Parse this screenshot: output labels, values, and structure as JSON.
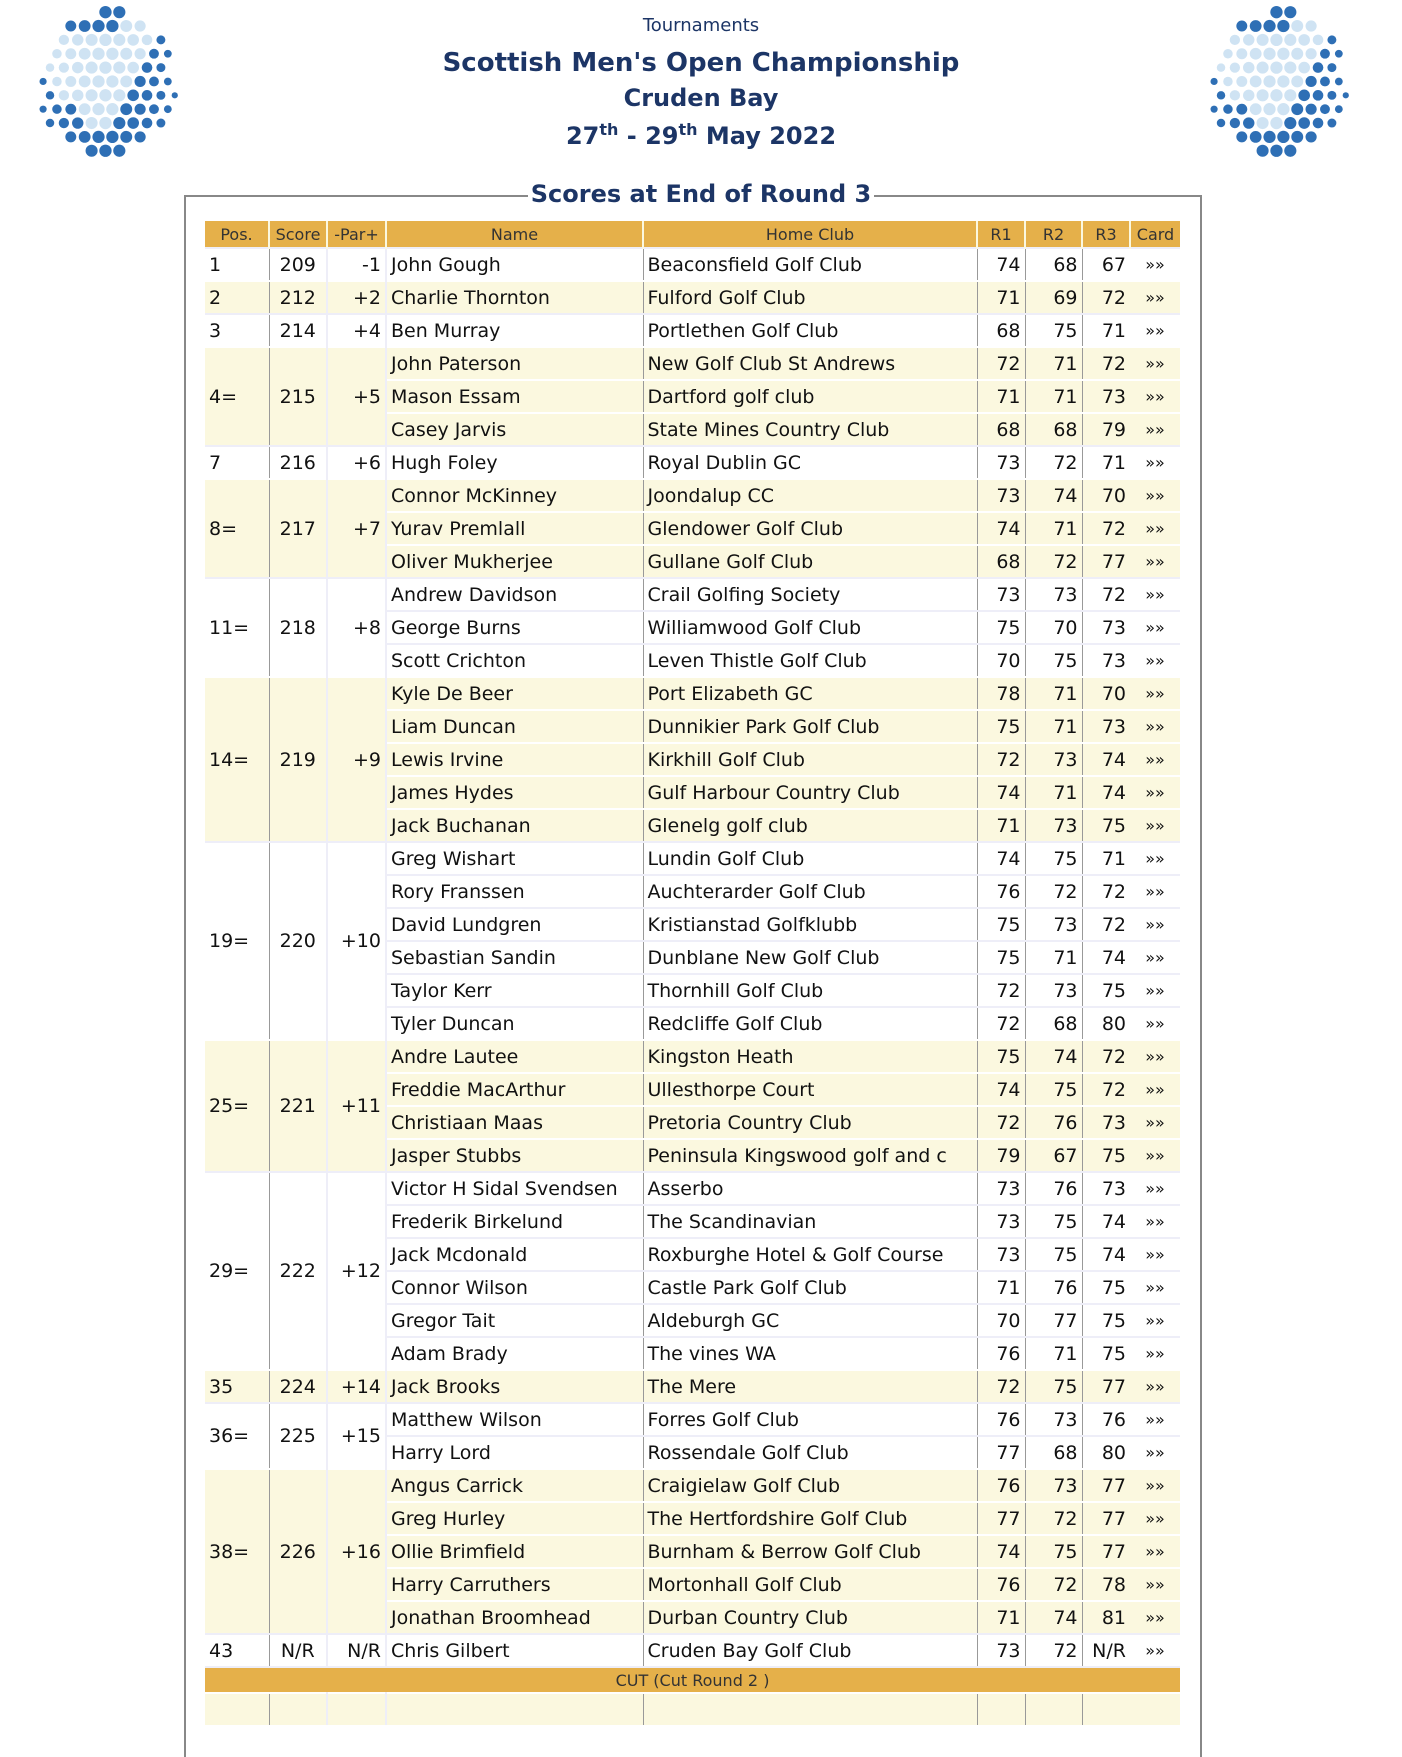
{
  "header": {
    "breadcrumb": "Tournaments",
    "title": "Scottish Men's Open Championship",
    "venue": "Cruden Bay",
    "date_start_day": "27",
    "date_start_suffix": "th",
    "date_sep": " - ",
    "date_end_day": "29",
    "date_end_suffix": "th",
    "date_rest": " May 2022"
  },
  "colors": {
    "header_gold": "#e5b04a",
    "cream_row": "#fbf8df",
    "title_navy": "#1c3566",
    "logo_dark": "#2e6fb5",
    "logo_light": "#cfe3f3"
  },
  "section_title": "Scores at End of Round 3",
  "columns": [
    "Pos.",
    "Score",
    "-Par+",
    "Name",
    "Home Club",
    "R1",
    "R2",
    "R3",
    "Card"
  ],
  "card_icon": "»»",
  "cut_label": "CUT (Cut Round 2 )",
  "groups": [
    {
      "pos": "1",
      "score": "209",
      "par": "-1",
      "players": [
        [
          "John Gough",
          "Beaconsfield Golf Club",
          "74",
          "68",
          "67"
        ]
      ]
    },
    {
      "pos": "2",
      "score": "212",
      "par": "+2",
      "players": [
        [
          "Charlie Thornton",
          "Fulford Golf Club",
          "71",
          "69",
          "72"
        ]
      ]
    },
    {
      "pos": "3",
      "score": "214",
      "par": "+4",
      "players": [
        [
          "Ben Murray",
          "Portlethen Golf Club",
          "68",
          "75",
          "71"
        ]
      ]
    },
    {
      "pos": "4=",
      "score": "215",
      "par": "+5",
      "players": [
        [
          "John Paterson",
          "New Golf Club St Andrews",
          "72",
          "71",
          "72"
        ],
        [
          "Mason Essam",
          "Dartford golf club",
          "71",
          "71",
          "73"
        ],
        [
          "Casey Jarvis",
          "State Mines Country Club",
          "68",
          "68",
          "79"
        ]
      ]
    },
    {
      "pos": "7",
      "score": "216",
      "par": "+6",
      "players": [
        [
          "Hugh Foley",
          "Royal Dublin GC",
          "73",
          "72",
          "71"
        ]
      ]
    },
    {
      "pos": "8=",
      "score": "217",
      "par": "+7",
      "players": [
        [
          "Connor McKinney",
          "Joondalup CC",
          "73",
          "74",
          "70"
        ],
        [
          "Yurav Premlall",
          "Glendower Golf Club",
          "74",
          "71",
          "72"
        ],
        [
          "Oliver Mukherjee",
          "Gullane Golf Club",
          "68",
          "72",
          "77"
        ]
      ]
    },
    {
      "pos": "11=",
      "score": "218",
      "par": "+8",
      "players": [
        [
          "Andrew Davidson",
          "Crail Golfing Society",
          "73",
          "73",
          "72"
        ],
        [
          "George Burns",
          "Williamwood Golf Club",
          "75",
          "70",
          "73"
        ],
        [
          "Scott Crichton",
          "Leven Thistle Golf Club",
          "70",
          "75",
          "73"
        ]
      ]
    },
    {
      "pos": "14=",
      "score": "219",
      "par": "+9",
      "players": [
        [
          "Kyle De Beer",
          "Port Elizabeth GC",
          "78",
          "71",
          "70"
        ],
        [
          "Liam Duncan",
          "Dunnikier Park Golf Club",
          "75",
          "71",
          "73"
        ],
        [
          "Lewis Irvine",
          "Kirkhill Golf Club",
          "72",
          "73",
          "74"
        ],
        [
          "James Hydes",
          "Gulf Harbour Country Club",
          "74",
          "71",
          "74"
        ],
        [
          "Jack Buchanan",
          "Glenelg golf club",
          "71",
          "73",
          "75"
        ]
      ]
    },
    {
      "pos": "19=",
      "score": "220",
      "par": "+10",
      "players": [
        [
          "Greg Wishart",
          "Lundin Golf Club",
          "74",
          "75",
          "71"
        ],
        [
          "Rory Franssen",
          "Auchterarder Golf Club",
          "76",
          "72",
          "72"
        ],
        [
          "David Lundgren",
          "Kristianstad Golfklubb",
          "75",
          "73",
          "72"
        ],
        [
          "Sebastian Sandin",
          "Dunblane New Golf Club",
          "75",
          "71",
          "74"
        ],
        [
          "Taylor Kerr",
          "Thornhill Golf Club",
          "72",
          "73",
          "75"
        ],
        [
          "Tyler Duncan",
          "Redcliffe Golf Club",
          "72",
          "68",
          "80"
        ]
      ]
    },
    {
      "pos": "25=",
      "score": "221",
      "par": "+11",
      "players": [
        [
          "Andre Lautee",
          "Kingston Heath",
          "75",
          "74",
          "72"
        ],
        [
          "Freddie MacArthur",
          "Ullesthorpe Court",
          "74",
          "75",
          "72"
        ],
        [
          "Christiaan Maas",
          "Pretoria Country Club",
          "72",
          "76",
          "73"
        ],
        [
          "Jasper Stubbs",
          "Peninsula Kingswood golf and c",
          "79",
          "67",
          "75"
        ]
      ]
    },
    {
      "pos": "29=",
      "score": "222",
      "par": "+12",
      "players": [
        [
          "Victor H Sidal Svendsen",
          "Asserbo",
          "73",
          "76",
          "73"
        ],
        [
          "Frederik Birkelund",
          "The Scandinavian",
          "73",
          "75",
          "74"
        ],
        [
          "Jack Mcdonald",
          "Roxburghe Hotel & Golf Course",
          "73",
          "75",
          "74"
        ],
        [
          "Connor Wilson",
          "Castle Park Golf Club",
          "71",
          "76",
          "75"
        ],
        [
          "Gregor Tait",
          "Aldeburgh GC",
          "70",
          "77",
          "75"
        ],
        [
          "Adam Brady",
          "The vines WA",
          "76",
          "71",
          "75"
        ]
      ]
    },
    {
      "pos": "35",
      "score": "224",
      "par": "+14",
      "players": [
        [
          "Jack Brooks",
          "The Mere",
          "72",
          "75",
          "77"
        ]
      ]
    },
    {
      "pos": "36=",
      "score": "225",
      "par": "+15",
      "players": [
        [
          "Matthew Wilson",
          "Forres Golf Club",
          "76",
          "73",
          "76"
        ],
        [
          "Harry Lord",
          "Rossendale Golf Club",
          "77",
          "68",
          "80"
        ]
      ]
    },
    {
      "pos": "38=",
      "score": "226",
      "par": "+16",
      "players": [
        [
          "Angus Carrick",
          "Craigielaw Golf Club",
          "76",
          "73",
          "77"
        ],
        [
          "Greg Hurley",
          "The Hertfordshire Golf Club",
          "77",
          "72",
          "77"
        ],
        [
          "Ollie Brimfield",
          "Burnham & Berrow Golf Club",
          "74",
          "75",
          "77"
        ],
        [
          "Harry Carruthers",
          "Mortonhall Golf Club",
          "76",
          "72",
          "78"
        ],
        [
          "Jonathan Broomhead",
          "Durban Country Club",
          "71",
          "74",
          "81"
        ]
      ]
    },
    {
      "pos": "43",
      "score": "N/R",
      "par": "N/R",
      "players": [
        [
          "Chris Gilbert",
          "Cruden Bay Golf Club",
          "73",
          "72",
          "N/R"
        ]
      ]
    }
  ]
}
